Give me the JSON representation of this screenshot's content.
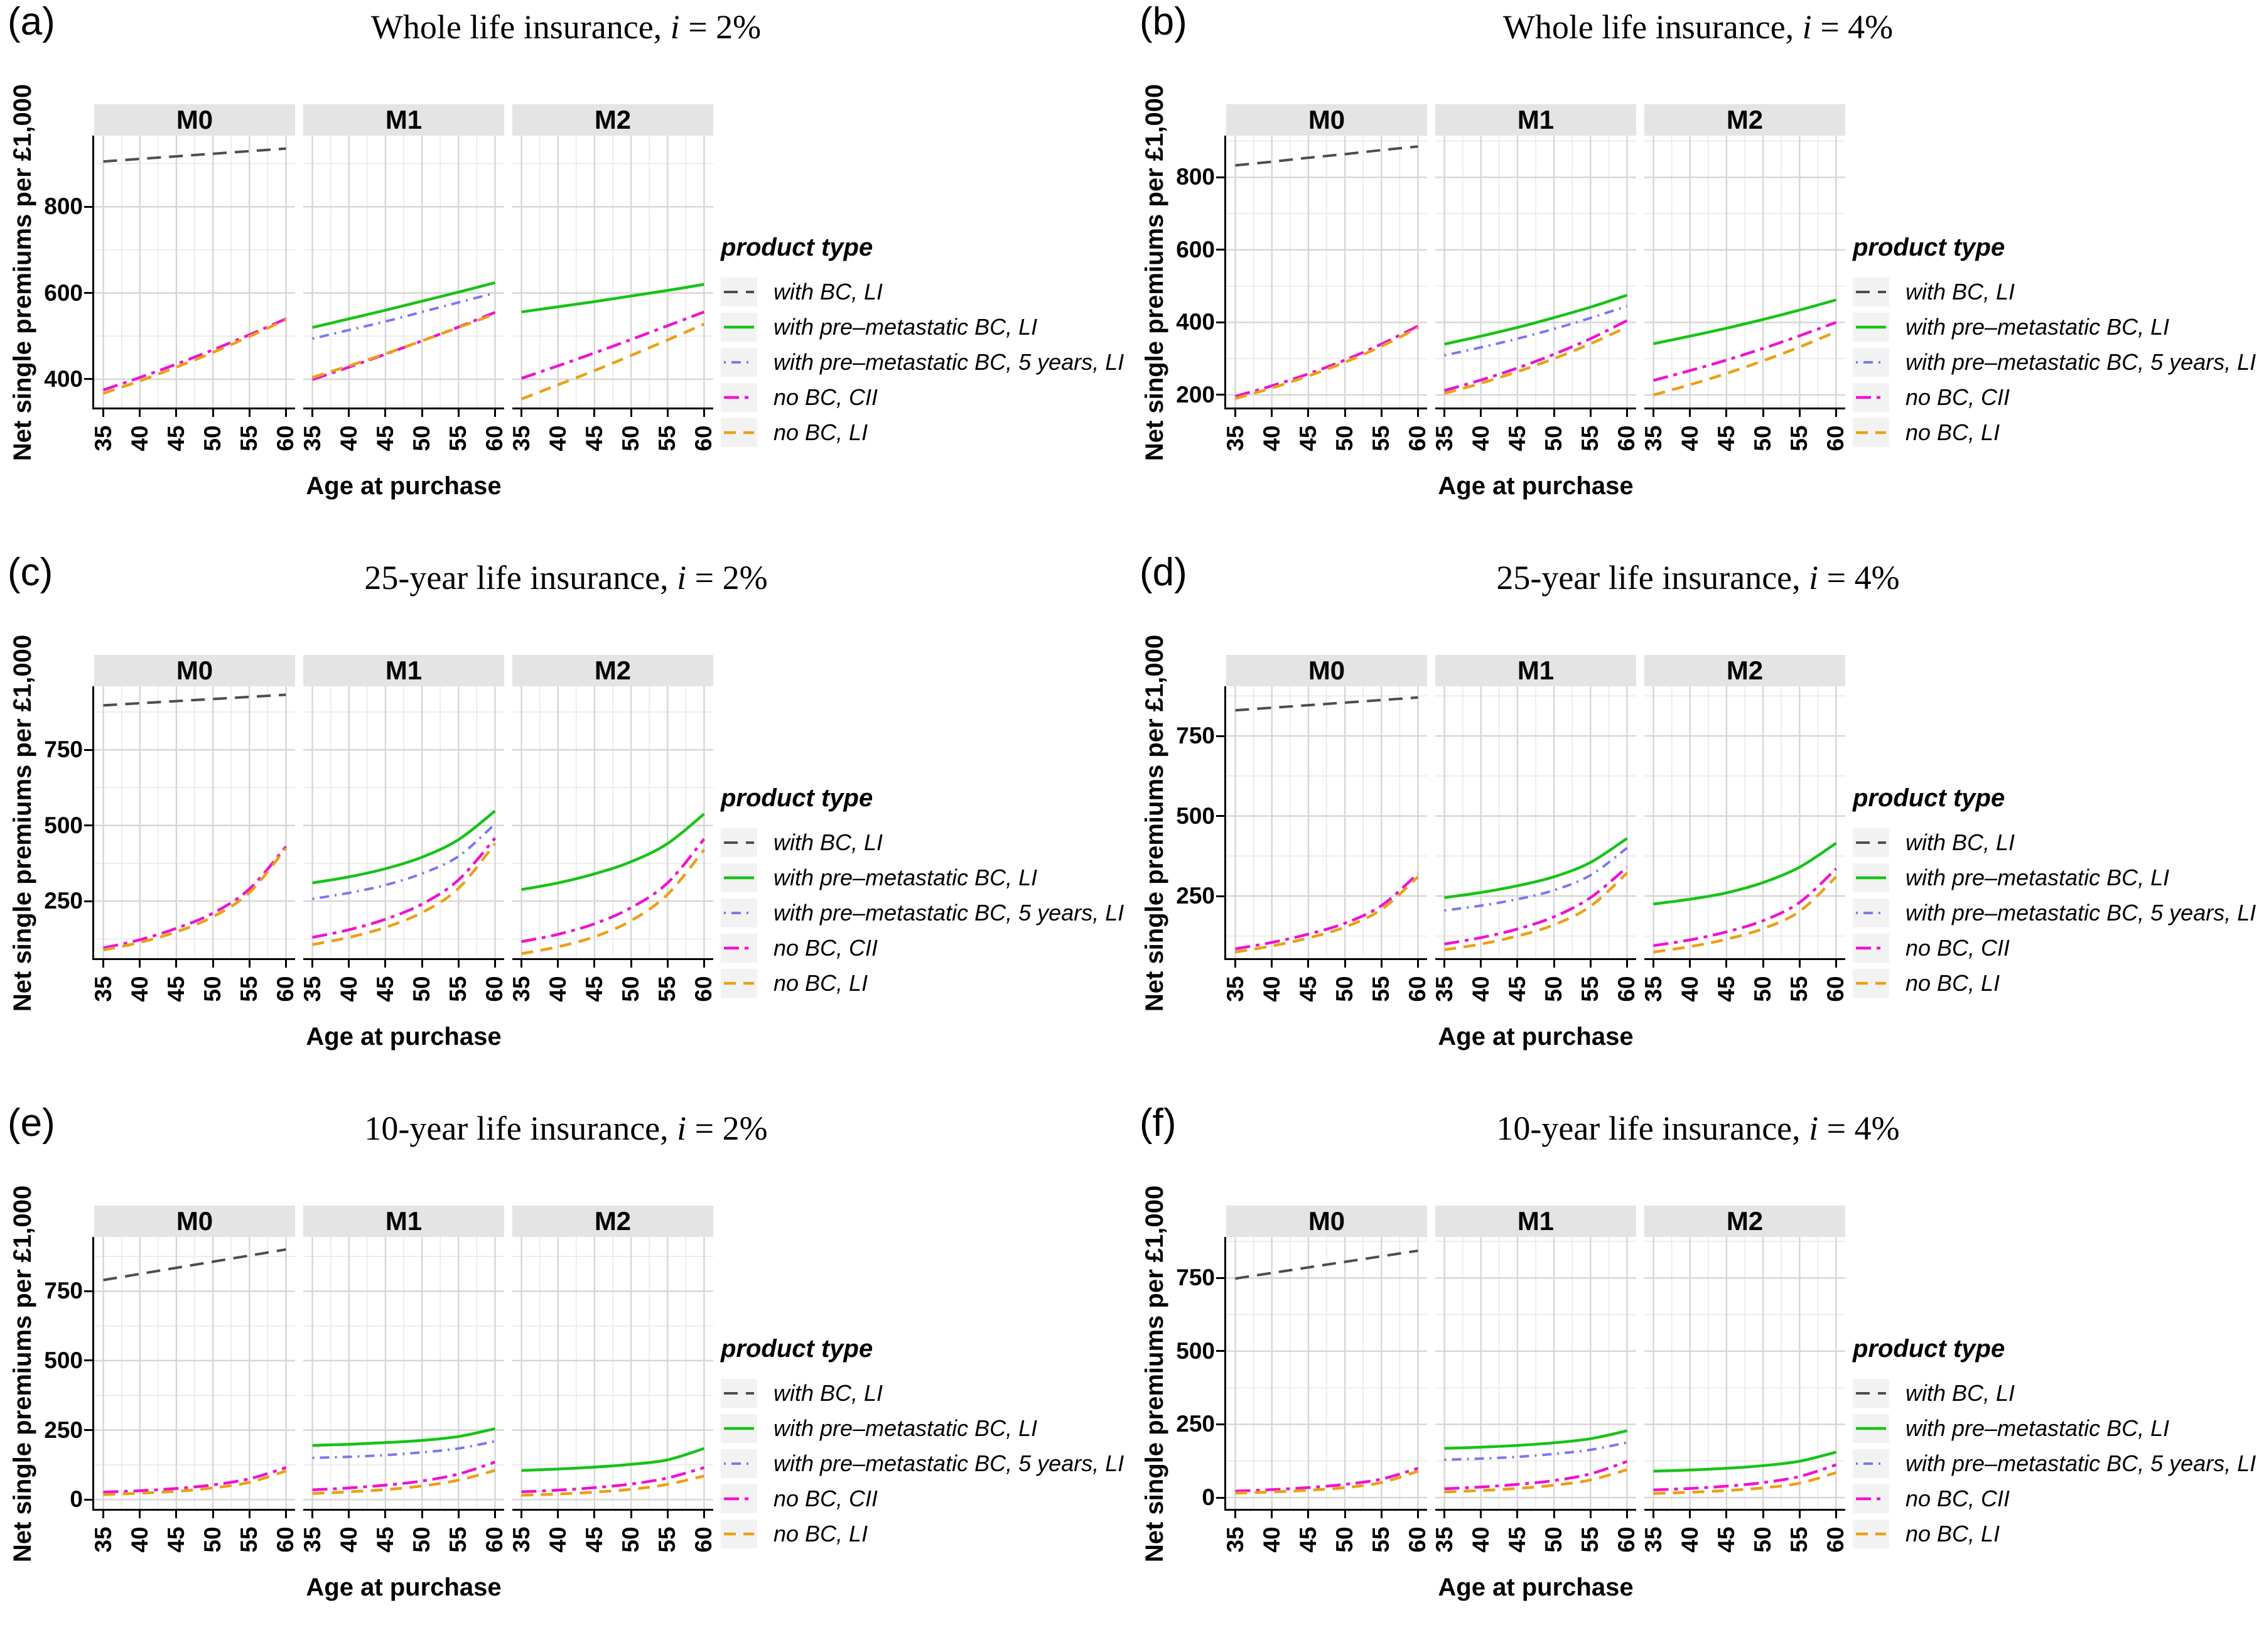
{
  "page": {
    "background": "#ffffff"
  },
  "axes": {
    "x_label": "Age at purchase",
    "y_label": "Net single premiums per £1,000",
    "x_ticks": [
      35,
      40,
      45,
      50,
      55,
      60
    ],
    "x_range": [
      33.75,
      61.25
    ],
    "facet_labels": [
      "M0",
      "M1",
      "M2"
    ]
  },
  "legend": {
    "title": "product type",
    "items": [
      {
        "key": "with_bc_li",
        "label": "with BC, LI"
      },
      {
        "key": "pre_bc_li",
        "label": "with pre–metastatic BC, LI"
      },
      {
        "key": "pre_bc_5y_li",
        "label": "with pre–metastatic BC, 5 years, LI"
      },
      {
        "key": "no_bc_cii",
        "label": "no BC, CII"
      },
      {
        "key": "no_bc_li",
        "label": "no BC, LI"
      }
    ]
  },
  "series_styles": {
    "with_bc_li": {
      "color": "#4d4d4d",
      "dash": "22 13",
      "width": 4
    },
    "pre_bc_li": {
      "color": "#17c317",
      "dash": "",
      "width": 4.5
    },
    "pre_bc_5y_li": {
      "color": "#7a79ef",
      "dash": "3 9 15 9",
      "width": 4
    },
    "no_bc_cii": {
      "color": "#f013cf",
      "dash": "24 9 6 9",
      "width": 4.5
    },
    "no_bc_li": {
      "color": "#eaa116",
      "dash": "19 12",
      "width": 4.5
    }
  },
  "theme": {
    "strip_bg": "#e4e4e4",
    "grid_major": "#d6d6d6",
    "grid_minor": "#e9e9e9",
    "axis_color": "#000000",
    "legend_key_bg": "#f2f2f2"
  },
  "chart_data": [
    {
      "letter": "(a)",
      "type": "line",
      "title": "Whole life insurance, i = 2%",
      "title_product": "Whole life insurance",
      "title_rate": "2%",
      "xlabel": "Age at purchase",
      "ylabel": "Net single premiums per £1,000",
      "x": [
        35,
        40,
        45,
        50,
        55,
        60
      ],
      "yticks": [
        400,
        600,
        800
      ],
      "ylim": [
        330,
        965
      ],
      "facets": [
        {
          "label": "M0",
          "series": [
            {
              "key": "with_bc_li",
              "values": [
                905,
                911,
                917,
                923,
                929,
                935
              ]
            },
            {
              "key": "no_bc_cii",
              "values": [
                375,
                404,
                435,
                468,
                503,
                540
              ]
            },
            {
              "key": "no_bc_li",
              "values": [
                367,
                396,
                428,
                462,
                499,
                538
              ]
            }
          ]
        },
        {
          "label": "M1",
          "series": [
            {
              "key": "pre_bc_li",
              "values": [
                520,
                540,
                560,
                581,
                602,
                624
              ]
            },
            {
              "key": "pre_bc_5y_li",
              "values": [
                494,
                514,
                534,
                556,
                578,
                600
              ]
            },
            {
              "key": "no_bc_cii",
              "values": [
                399,
                428,
                458,
                489,
                521,
                555
              ]
            },
            {
              "key": "no_bc_li",
              "values": [
                404,
                431,
                459,
                489,
                520,
                551
              ]
            }
          ]
        },
        {
          "label": "M2",
          "series": [
            {
              "key": "pre_bc_li",
              "values": [
                556,
                568,
                580,
                593,
                606,
                620
              ]
            },
            {
              "key": "no_bc_cii",
              "values": [
                402,
                431,
                461,
                492,
                524,
                556
              ]
            },
            {
              "key": "no_bc_li",
              "values": [
                354,
                387,
                420,
                455,
                491,
                528
              ]
            }
          ]
        }
      ]
    },
    {
      "letter": "(b)",
      "type": "line",
      "title": "Whole life insurance, i = 4%",
      "title_product": "Whole life insurance",
      "title_rate": "4%",
      "xlabel": "Age at purchase",
      "ylabel": "Net single premiums per £1,000",
      "x": [
        35,
        40,
        45,
        50,
        55,
        60
      ],
      "yticks": [
        200,
        400,
        600,
        800
      ],
      "ylim": [
        160,
        915
      ],
      "facets": [
        {
          "label": "M0",
          "series": [
            {
              "key": "with_bc_li",
              "values": [
                833,
                843,
                854,
                864,
                875,
                885
              ]
            },
            {
              "key": "no_bc_cii",
              "values": [
                196,
                225,
                258,
                296,
                340,
                390
              ]
            },
            {
              "key": "no_bc_li",
              "values": [
                190,
                219,
                252,
                290,
                334,
                385
              ]
            }
          ]
        },
        {
          "label": "M1",
          "series": [
            {
              "key": "pre_bc_li",
              "values": [
                340,
                362,
                386,
                413,
                442,
                475
              ]
            },
            {
              "key": "pre_bc_5y_li",
              "values": [
                309,
                331,
                355,
                382,
                412,
                445
              ]
            },
            {
              "key": "no_bc_cii",
              "values": [
                212,
                241,
                274,
                312,
                355,
                405
              ]
            },
            {
              "key": "no_bc_li",
              "values": [
                204,
                232,
                264,
                300,
                341,
                387
              ]
            }
          ]
        },
        {
          "label": "M2",
          "series": [
            {
              "key": "pre_bc_li",
              "values": [
                341,
                362,
                384,
                408,
                434,
                462
              ]
            },
            {
              "key": "no_bc_cii",
              "values": [
                240,
                267,
                296,
                328,
                363,
                400
              ]
            },
            {
              "key": "no_bc_li",
              "values": [
                200,
                228,
                259,
                294,
                332,
                374
              ]
            }
          ]
        }
      ]
    },
    {
      "letter": "(c)",
      "type": "line",
      "title": "25-year life insurance, i = 2%",
      "title_product": "25-year life insurance",
      "title_rate": "2%",
      "xlabel": "Age at purchase",
      "ylabel": "Net single premiums per £1,000",
      "x": [
        35,
        40,
        45,
        50,
        55,
        60
      ],
      "yticks": [
        250,
        500,
        750
      ],
      "ylim": [
        55,
        960
      ],
      "facets": [
        {
          "label": "M0",
          "series": [
            {
              "key": "with_bc_li",
              "values": [
                897,
                904,
                911,
                918,
                925,
                932
              ]
            },
            {
              "key": "no_bc_cii",
              "values": [
                95,
                122,
                160,
                210,
                290,
                430
              ]
            },
            {
              "key": "no_bc_li",
              "values": [
                88,
                113,
                148,
                198,
                278,
                425
              ]
            }
          ]
        },
        {
          "label": "M1",
          "series": [
            {
              "key": "pre_bc_li",
              "values": [
                310,
                330,
                357,
                395,
                453,
                548
              ]
            },
            {
              "key": "pre_bc_5y_li",
              "values": [
                257,
                277,
                303,
                341,
                398,
                505
              ]
            },
            {
              "key": "no_bc_cii",
              "values": [
                130,
                155,
                190,
                240,
                320,
                458
              ]
            },
            {
              "key": "no_bc_li",
              "values": [
                106,
                130,
                163,
                212,
                292,
                440
              ]
            }
          ]
        },
        {
          "label": "M2",
          "series": [
            {
              "key": "pre_bc_li",
              "values": [
                288,
                310,
                340,
                380,
                440,
                538
              ]
            },
            {
              "key": "no_bc_cii",
              "values": [
                116,
                140,
                175,
                228,
                310,
                455
              ]
            },
            {
              "key": "no_bc_li",
              "values": [
                76,
                99,
                132,
                185,
                272,
                420
              ]
            }
          ]
        }
      ]
    },
    {
      "letter": "(d)",
      "type": "line",
      "title": "25-year life insurance, i = 4%",
      "title_product": "25-year life insurance",
      "title_rate": "4%",
      "xlabel": "Age at purchase",
      "ylabel": "Net single premiums per £1,000",
      "x": [
        35,
        40,
        45,
        50,
        55,
        60
      ],
      "yticks": [
        250,
        500,
        750
      ],
      "ylim": [
        50,
        905
      ],
      "facets": [
        {
          "label": "M0",
          "series": [
            {
              "key": "with_bc_li",
              "values": [
                830,
                838,
                846,
                854,
                862,
                870
              ]
            },
            {
              "key": "no_bc_cii",
              "values": [
                85,
                105,
                131,
                165,
                220,
                320
              ]
            },
            {
              "key": "no_bc_li",
              "values": [
                75,
                94,
                119,
                153,
                208,
                310
              ]
            }
          ]
        },
        {
          "label": "M1",
          "series": [
            {
              "key": "pre_bc_li",
              "values": [
                245,
                261,
                282,
                310,
                355,
                430
              ]
            },
            {
              "key": "pre_bc_5y_li",
              "values": [
                205,
                220,
                240,
                268,
                315,
                400
              ]
            },
            {
              "key": "no_bc_cii",
              "values": [
                100,
                120,
                147,
                185,
                245,
                340
              ]
            },
            {
              "key": "no_bc_li",
              "values": [
                82,
                100,
                125,
                160,
                218,
                322
              ]
            }
          ]
        },
        {
          "label": "M2",
          "series": [
            {
              "key": "pre_bc_li",
              "values": [
                225,
                240,
                260,
                292,
                340,
                415
              ]
            },
            {
              "key": "no_bc_cii",
              "values": [
                95,
                113,
                138,
                173,
                230,
                335
              ]
            },
            {
              "key": "no_bc_li",
              "values": [
                75,
                92,
                115,
                148,
                202,
                310
              ]
            }
          ]
        }
      ]
    },
    {
      "letter": "(e)",
      "type": "line",
      "title": "10-year life insurance, i = 2%",
      "title_product": "10-year life insurance",
      "title_rate": "2%",
      "xlabel": "Age at purchase",
      "ylabel": "Net single premiums per £1,000",
      "x": [
        35,
        40,
        45,
        50,
        55,
        60
      ],
      "yticks": [
        0,
        250,
        500,
        750
      ],
      "ylim": [
        -40,
        945
      ],
      "facets": [
        {
          "label": "M0",
          "series": [
            {
              "key": "with_bc_li",
              "values": [
                790,
                812,
                834,
                856,
                878,
                900
              ]
            },
            {
              "key": "no_bc_cii",
              "values": [
                27,
                32,
                40,
                53,
                75,
                115
              ]
            },
            {
              "key": "no_bc_li",
              "values": [
                18,
                23,
                30,
                42,
                62,
                103
              ]
            }
          ]
        },
        {
          "label": "M1",
          "series": [
            {
              "key": "pre_bc_li",
              "values": [
                195,
                199,
                205,
                213,
                227,
                255
              ]
            },
            {
              "key": "pre_bc_5y_li",
              "values": [
                150,
                154,
                160,
                170,
                184,
                210
              ]
            },
            {
              "key": "no_bc_cii",
              "values": [
                35,
                42,
                52,
                67,
                92,
                135
              ]
            },
            {
              "key": "no_bc_li",
              "values": [
                22,
                28,
                36,
                49,
                70,
                105
              ]
            }
          ]
        },
        {
          "label": "M2",
          "series": [
            {
              "key": "pre_bc_li",
              "values": [
                105,
                110,
                117,
                127,
                143,
                184
              ]
            },
            {
              "key": "no_bc_cii",
              "values": [
                28,
                34,
                43,
                56,
                78,
                115
              ]
            },
            {
              "key": "no_bc_li",
              "values": [
                16,
                20,
                27,
                37,
                55,
                85
              ]
            }
          ]
        }
      ]
    },
    {
      "letter": "(f)",
      "type": "line",
      "title": "10-year life insurance, i = 4%",
      "title_product": "10-year life insurance",
      "title_rate": "4%",
      "xlabel": "Age at purchase",
      "ylabel": "Net single premiums per £1,000",
      "x": [
        35,
        40,
        45,
        50,
        55,
        60
      ],
      "yticks": [
        0,
        250,
        500,
        750
      ],
      "ylim": [
        -45,
        890
      ],
      "facets": [
        {
          "label": "M0",
          "series": [
            {
              "key": "with_bc_li",
              "values": [
                748,
                767,
                786,
                805,
                824,
                843
              ]
            },
            {
              "key": "no_bc_cii",
              "values": [
                22,
                27,
                34,
                45,
                63,
                100
              ]
            },
            {
              "key": "no_bc_li",
              "values": [
                15,
                19,
                25,
                34,
                51,
                90
              ]
            }
          ]
        },
        {
          "label": "M1",
          "series": [
            {
              "key": "pre_bc_li",
              "values": [
                168,
                172,
                178,
                187,
                201,
                228
              ]
            },
            {
              "key": "pre_bc_5y_li",
              "values": [
                129,
                133,
                139,
                149,
                163,
                188
              ]
            },
            {
              "key": "no_bc_cii",
              "values": [
                30,
                36,
                45,
                58,
                81,
                123
              ]
            },
            {
              "key": "no_bc_li",
              "values": [
                19,
                24,
                31,
                42,
                60,
                95
              ]
            }
          ]
        },
        {
          "label": "M2",
          "series": [
            {
              "key": "pre_bc_li",
              "values": [
                90,
                94,
                100,
                109,
                124,
                155
              ]
            },
            {
              "key": "no_bc_cii",
              "values": [
                26,
                31,
                39,
                51,
                72,
                112
              ]
            },
            {
              "key": "no_bc_li",
              "values": [
                14,
                18,
                24,
                33,
                49,
                85
              ]
            }
          ]
        }
      ]
    }
  ]
}
